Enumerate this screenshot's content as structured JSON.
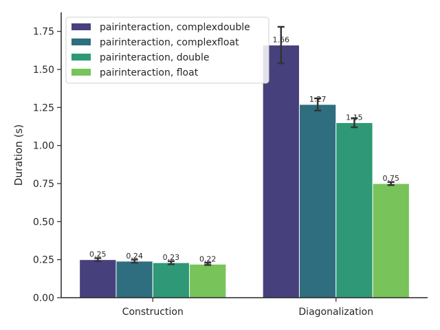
{
  "chart_data": {
    "type": "bar",
    "title": "",
    "xlabel": "",
    "ylabel": "Duration (s)",
    "ylim": [
      0,
      1.875
    ],
    "yticks": [
      0.0,
      0.25,
      0.5,
      0.75,
      1.0,
      1.25,
      1.5,
      1.75
    ],
    "ytick_labels": [
      "0.00",
      "0.25",
      "0.50",
      "0.75",
      "1.00",
      "1.25",
      "1.50",
      "1.75"
    ],
    "grid": false,
    "legend_position": "top-left",
    "categories": [
      "Construction",
      "Diagonalization"
    ],
    "series": [
      {
        "name": "pairinteraction, complexdouble",
        "color": "#46417c",
        "values": [
          0.25,
          1.66
        ],
        "value_labels": [
          "0.25",
          "1.66"
        ],
        "error_low": [
          0.24,
          1.54
        ],
        "error_high": [
          0.26,
          1.78
        ]
      },
      {
        "name": "pairinteraction, complexfloat",
        "color": "#2e6e7e",
        "values": [
          0.24,
          1.27
        ],
        "value_labels": [
          "0.24",
          "1.27"
        ],
        "error_low": [
          0.23,
          1.23
        ],
        "error_high": [
          0.25,
          1.31
        ]
      },
      {
        "name": "pairinteraction, double",
        "color": "#2e9877",
        "values": [
          0.23,
          1.15
        ],
        "value_labels": [
          "0.23",
          "1.15"
        ],
        "error_low": [
          0.22,
          1.12
        ],
        "error_high": [
          0.24,
          1.18
        ]
      },
      {
        "name": "pairinteraction, float",
        "color": "#78c35a",
        "values": [
          0.22,
          0.75
        ],
        "value_labels": [
          "0.22",
          "0.75"
        ],
        "error_low": [
          0.215,
          0.74
        ],
        "error_high": [
          0.23,
          0.76
        ]
      }
    ]
  }
}
